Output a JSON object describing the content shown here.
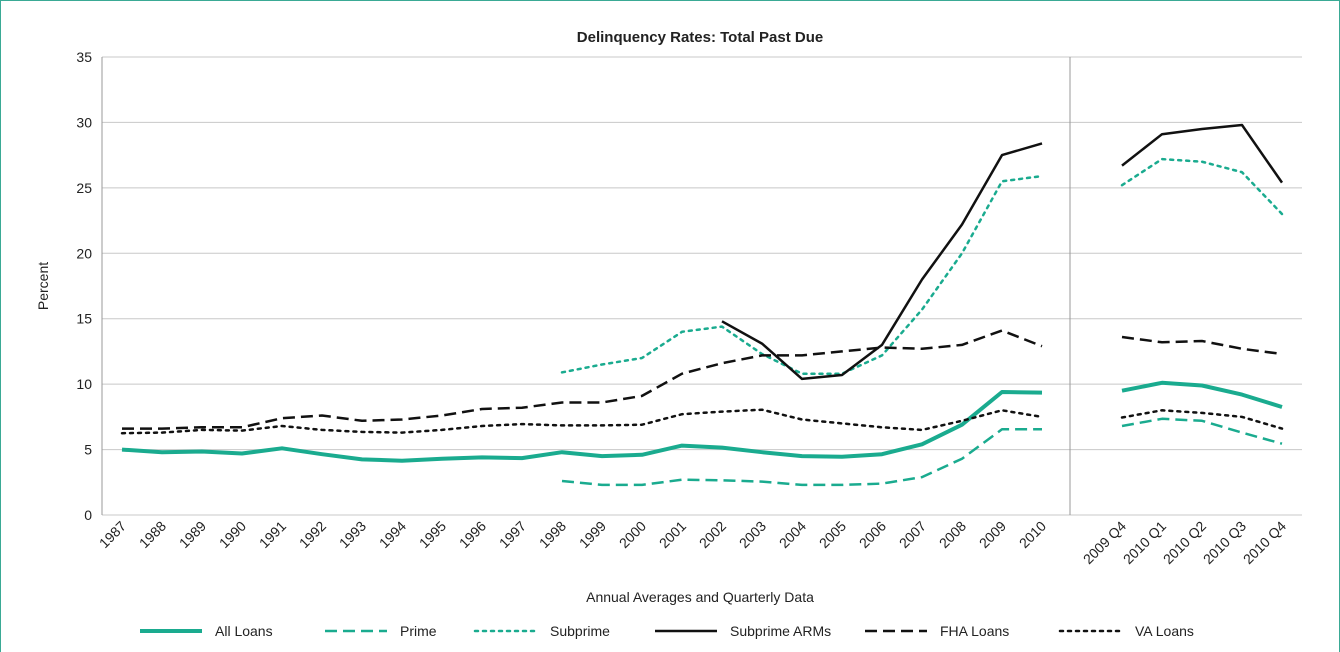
{
  "chart_data": {
    "type": "line",
    "title": "Delinquency Rates: Total Past Due",
    "y_label": "Percent",
    "x_label": "Annual Averages and Quarterly Data",
    "categories": [
      "1987",
      "1988",
      "1989",
      "1990",
      "1991",
      "1992",
      "1993",
      "1994",
      "1995",
      "1996",
      "1997",
      "1998",
      "1999",
      "2000",
      "2001",
      "2002",
      "2003",
      "2004",
      "2005",
      "2006",
      "2007",
      "2008",
      "2009",
      "2010",
      null,
      "2009 Q4",
      "2010 Q1",
      "2010 Q2",
      "2010 Q3",
      "2010 Q4"
    ],
    "ylim": [
      0,
      35
    ],
    "yticks": [
      0,
      5,
      10,
      15,
      20,
      25,
      30,
      35
    ],
    "grid": true,
    "series": [
      {
        "name": "All Loans",
        "color": "#1aab8f",
        "style": "solid",
        "values": [
          5.0,
          4.8,
          4.85,
          4.7,
          5.1,
          4.65,
          4.25,
          4.15,
          4.3,
          4.4,
          4.35,
          4.8,
          4.5,
          4.6,
          5.3,
          5.15,
          4.8,
          4.5,
          4.45,
          4.65,
          5.4,
          6.9,
          9.4,
          9.35,
          null,
          9.5,
          10.1,
          9.9,
          9.2,
          8.25
        ]
      },
      {
        "name": "Prime",
        "color": "#1aab8f",
        "style": "dashed",
        "values": [
          null,
          null,
          null,
          null,
          null,
          null,
          null,
          null,
          null,
          null,
          null,
          2.6,
          2.3,
          2.3,
          2.7,
          2.65,
          2.55,
          2.3,
          2.3,
          2.4,
          2.9,
          4.3,
          6.55,
          6.55,
          null,
          6.8,
          7.35,
          7.2,
          6.3,
          5.45
        ]
      },
      {
        "name": "Subprime",
        "color": "#1aab8f",
        "style": "dotted",
        "values": [
          null,
          null,
          null,
          null,
          null,
          null,
          null,
          null,
          null,
          null,
          null,
          10.9,
          11.5,
          12.0,
          14.0,
          14.4,
          12.3,
          10.8,
          10.8,
          12.2,
          15.7,
          20.0,
          25.5,
          25.9,
          null,
          25.2,
          27.2,
          27.0,
          26.2,
          23.0
        ]
      },
      {
        "name": "Subprime ARMs",
        "color": "#111111",
        "style": "solid",
        "values": [
          null,
          null,
          null,
          null,
          null,
          null,
          null,
          null,
          null,
          null,
          null,
          null,
          null,
          null,
          null,
          14.8,
          13.1,
          10.4,
          10.7,
          13.0,
          18.0,
          22.2,
          27.5,
          28.4,
          null,
          26.7,
          29.1,
          29.5,
          29.8,
          25.4
        ]
      },
      {
        "name": "FHA Loans",
        "color": "#111111",
        "style": "dashed",
        "values": [
          6.6,
          6.6,
          6.7,
          6.7,
          7.4,
          7.6,
          7.2,
          7.3,
          7.6,
          8.1,
          8.2,
          8.6,
          8.6,
          9.1,
          10.8,
          11.6,
          12.2,
          12.2,
          12.5,
          12.8,
          12.7,
          13.0,
          14.1,
          12.9,
          null,
          13.6,
          13.2,
          13.3,
          12.7,
          12.3
        ]
      },
      {
        "name": "VA Loans",
        "color": "#111111",
        "style": "dotted",
        "values": [
          6.25,
          6.3,
          6.5,
          6.45,
          6.8,
          6.5,
          6.35,
          6.3,
          6.5,
          6.8,
          6.95,
          6.85,
          6.85,
          6.9,
          7.7,
          7.9,
          8.05,
          7.3,
          7.0,
          6.7,
          6.5,
          7.2,
          8.0,
          7.5,
          null,
          7.45,
          8.0,
          7.8,
          7.5,
          6.6
        ]
      }
    ]
  }
}
